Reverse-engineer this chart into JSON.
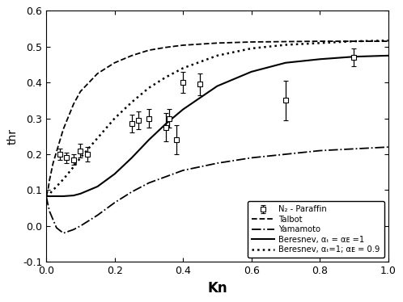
{
  "title": "",
  "xlabel": "Kn",
  "ylabel": "thr",
  "xlim": [
    0.0,
    1.0
  ],
  "ylim": [
    -0.1,
    0.6
  ],
  "yticks": [
    -0.1,
    0.0,
    0.1,
    0.2,
    0.3,
    0.4,
    0.5,
    0.6
  ],
  "xticks": [
    0.0,
    0.2,
    0.4,
    0.6,
    0.8,
    1.0
  ],
  "exp_x": [
    0.04,
    0.06,
    0.08,
    0.1,
    0.12,
    0.25,
    0.27,
    0.3,
    0.35,
    0.36,
    0.38,
    0.4,
    0.45,
    0.7,
    0.9
  ],
  "exp_y": [
    0.2,
    0.19,
    0.185,
    0.21,
    0.2,
    0.285,
    0.295,
    0.3,
    0.275,
    0.3,
    0.24,
    0.4,
    0.395,
    0.35,
    0.47
  ],
  "exp_yerr": [
    0.015,
    0.015,
    0.015,
    0.02,
    0.02,
    0.025,
    0.025,
    0.025,
    0.04,
    0.025,
    0.04,
    0.03,
    0.03,
    0.055,
    0.025
  ],
  "talbot_x": [
    0.0,
    0.005,
    0.01,
    0.02,
    0.05,
    0.08,
    0.1,
    0.15,
    0.2,
    0.25,
    0.3,
    0.35,
    0.4,
    0.5,
    0.6,
    0.7,
    0.8,
    0.9,
    1.0
  ],
  "talbot_y": [
    0.083,
    0.1,
    0.13,
    0.175,
    0.27,
    0.34,
    0.375,
    0.425,
    0.455,
    0.475,
    0.49,
    0.498,
    0.504,
    0.51,
    0.513,
    0.514,
    0.515,
    0.515,
    0.515
  ],
  "yamamoto_x": [
    0.0,
    0.005,
    0.01,
    0.03,
    0.05,
    0.08,
    0.1,
    0.15,
    0.2,
    0.25,
    0.3,
    0.4,
    0.5,
    0.6,
    0.7,
    0.8,
    0.9,
    1.0
  ],
  "yamamoto_y": [
    0.083,
    0.06,
    0.04,
    -0.005,
    -0.02,
    -0.01,
    0.0,
    0.03,
    0.065,
    0.095,
    0.12,
    0.155,
    0.175,
    0.19,
    0.2,
    0.21,
    0.215,
    0.22
  ],
  "beresnev1_x": [
    0.0,
    0.005,
    0.01,
    0.02,
    0.05,
    0.08,
    0.1,
    0.15,
    0.2,
    0.25,
    0.3,
    0.35,
    0.4,
    0.5,
    0.6,
    0.7,
    0.8,
    0.9,
    1.0
  ],
  "beresnev1_y": [
    0.083,
    0.083,
    0.083,
    0.083,
    0.083,
    0.085,
    0.09,
    0.11,
    0.145,
    0.19,
    0.24,
    0.285,
    0.325,
    0.39,
    0.43,
    0.455,
    0.465,
    0.472,
    0.475
  ],
  "beresnev2_x": [
    0.0,
    0.005,
    0.01,
    0.02,
    0.05,
    0.08,
    0.1,
    0.15,
    0.2,
    0.25,
    0.3,
    0.35,
    0.4,
    0.5,
    0.6,
    0.7,
    0.8,
    0.9,
    1.0
  ],
  "beresnev2_y": [
    0.083,
    0.085,
    0.09,
    0.1,
    0.13,
    0.165,
    0.19,
    0.245,
    0.3,
    0.345,
    0.385,
    0.415,
    0.44,
    0.475,
    0.495,
    0.505,
    0.51,
    0.515,
    0.517
  ],
  "legend_labels": [
    "N₂ - Paraffin",
    "Talbot",
    "Yamamoto",
    "Beresnev, αₜ = αᴇ =1",
    "Beresnev, αₜ=1; αᴇ = 0.9"
  ],
  "background_color": "#ffffff",
  "line_color": "#000000"
}
